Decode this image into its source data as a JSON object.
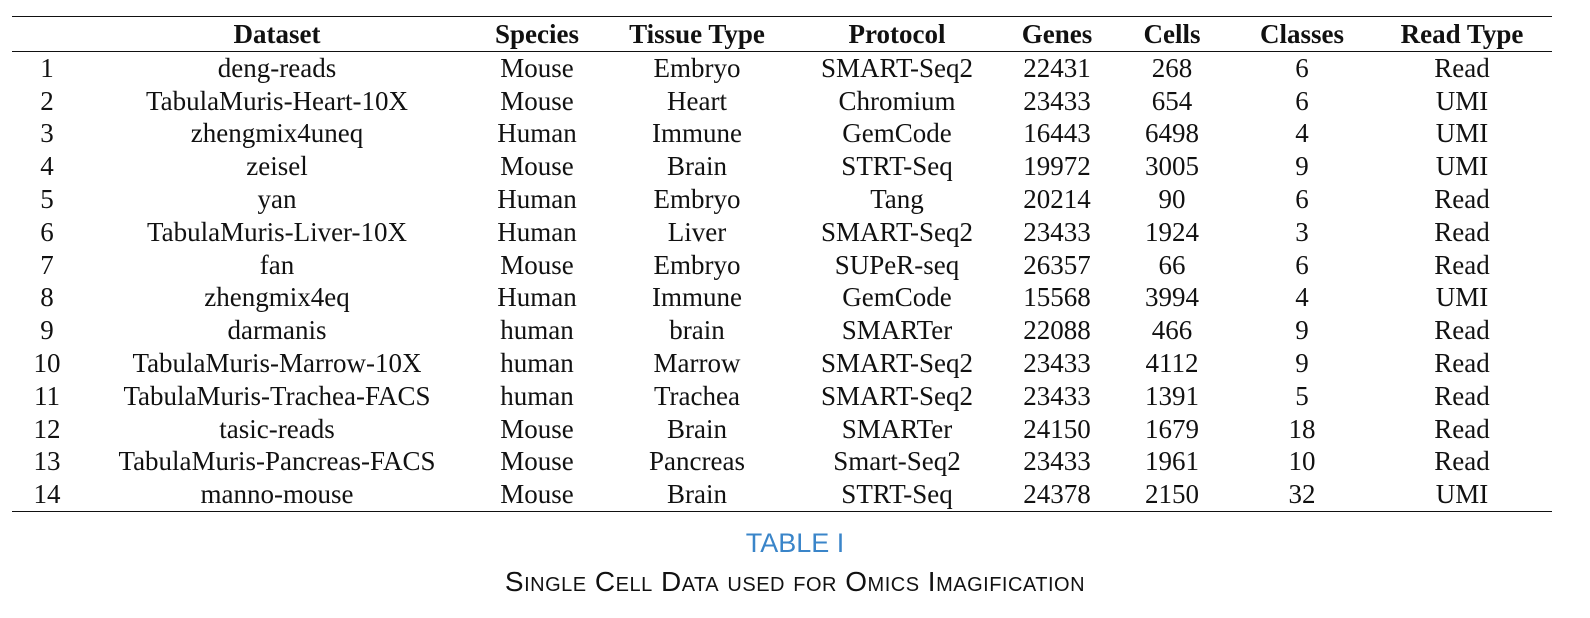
{
  "table": {
    "columns": [
      "",
      "Dataset",
      "Species",
      "Tissue Type",
      "Protocol",
      "Genes",
      "Cells",
      "Classes",
      "Read Type"
    ],
    "rows": [
      [
        "1",
        "deng-reads",
        "Mouse",
        "Embryo",
        "SMART-Seq2",
        "22431",
        "268",
        "6",
        "Read"
      ],
      [
        "2",
        "TabulaMuris-Heart-10X",
        "Mouse",
        "Heart",
        "Chromium",
        "23433",
        "654",
        "6",
        "UMI"
      ],
      [
        "3",
        "zhengmix4uneq",
        "Human",
        "Immune",
        "GemCode",
        "16443",
        "6498",
        "4",
        "UMI"
      ],
      [
        "4",
        "zeisel",
        "Mouse",
        "Brain",
        "STRT-Seq",
        "19972",
        "3005",
        "9",
        "UMI"
      ],
      [
        "5",
        "yan",
        "Human",
        "Embryo",
        "Tang",
        "20214",
        "90",
        "6",
        "Read"
      ],
      [
        "6",
        "TabulaMuris-Liver-10X",
        "Human",
        "Liver",
        "SMART-Seq2",
        "23433",
        "1924",
        "3",
        "Read"
      ],
      [
        "7",
        "fan",
        "Mouse",
        "Embryo",
        "SUPeR-seq",
        "26357",
        "66",
        "6",
        "Read"
      ],
      [
        "8",
        "zhengmix4eq",
        "Human",
        "Immune",
        "GemCode",
        "15568",
        "3994",
        "4",
        "UMI"
      ],
      [
        "9",
        "darmanis",
        "human",
        "brain",
        "SMARTer",
        "22088",
        "466",
        "9",
        "Read"
      ],
      [
        "10",
        "TabulaMuris-Marrow-10X",
        "human",
        "Marrow",
        "SMART-Seq2",
        "23433",
        "4112",
        "9",
        "Read"
      ],
      [
        "11",
        "TabulaMuris-Trachea-FACS",
        "human",
        "Trachea",
        "SMART-Seq2",
        "23433",
        "1391",
        "5",
        "Read"
      ],
      [
        "12",
        "tasic-reads",
        "Mouse",
        "Brain",
        "SMARTer",
        "24150",
        "1679",
        "18",
        "Read"
      ],
      [
        "13",
        "TabulaMuris-Pancreas-FACS",
        "Mouse",
        "Pancreas",
        "Smart-Seq2",
        "23433",
        "1961",
        "10",
        "Read"
      ],
      [
        "14",
        "manno-mouse",
        "Mouse",
        "Brain",
        "STRT-Seq",
        "24378",
        "2150",
        "32",
        "UMI"
      ]
    ]
  },
  "caption": {
    "label": "TABLE I",
    "title": "Single Cell Data used for Omics Imagification"
  },
  "colors": {
    "caption_label": "#3a85c9",
    "text": "#111111"
  }
}
